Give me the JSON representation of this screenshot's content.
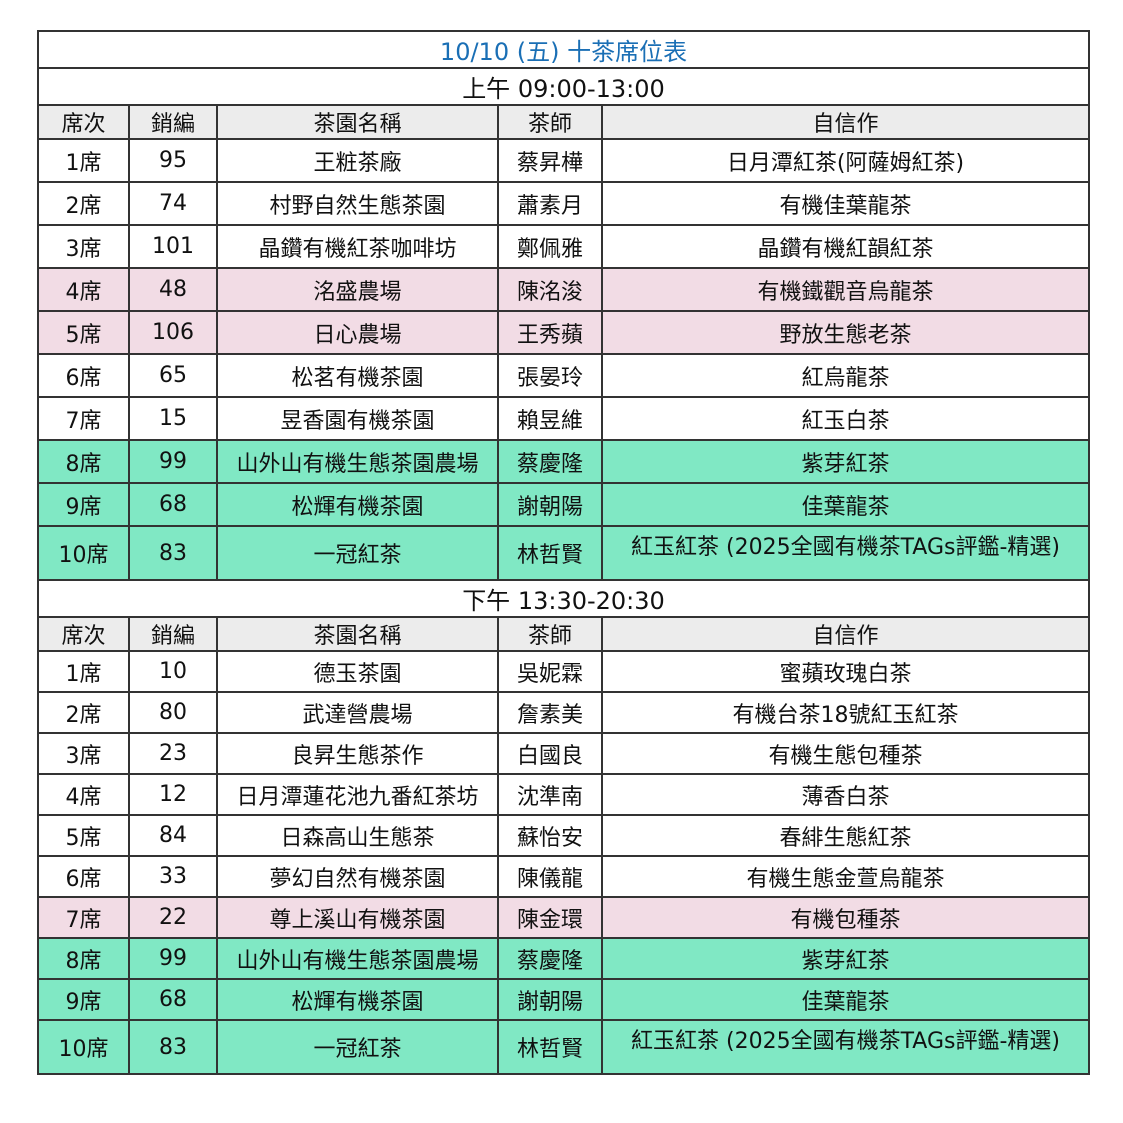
{
  "title": "10/10 (五) 十茶席位表",
  "colors": {
    "title": "#1a6fb5",
    "header_bg": "#ececec",
    "pink": "#f2dce5",
    "green": "#80e8c4"
  },
  "headers": [
    "席次",
    "銷編",
    "茶園名稱",
    "茶師",
    "自信作"
  ],
  "sessions": [
    {
      "label": "上午 09:00-13:00",
      "rows": [
        {
          "seat": "1席",
          "code": "95",
          "garden": "王粧茶廠",
          "master": "蔡昇樺",
          "tea": "日月潭紅茶(阿薩姆紅茶)",
          "highlight": "none"
        },
        {
          "seat": "2席",
          "code": "74",
          "garden": "村野自然生態茶園",
          "master": "蕭素月",
          "tea": "有機佳葉龍茶",
          "highlight": "none"
        },
        {
          "seat": "3席",
          "code": "101",
          "garden": "晶鑽有機紅茶咖啡坊",
          "master": "鄭佩雅",
          "tea": "晶鑽有機紅韻紅茶",
          "highlight": "none"
        },
        {
          "seat": "4席",
          "code": "48",
          "garden": "洺盛農場",
          "master": "陳洺浚",
          "tea": "有機鐵觀音烏龍茶",
          "highlight": "pink"
        },
        {
          "seat": "5席",
          "code": "106",
          "garden": "日心農場",
          "master": "王秀蘋",
          "tea": "野放生態老茶",
          "highlight": "pink"
        },
        {
          "seat": "6席",
          "code": "65",
          "garden": "松茗有機茶園",
          "master": "張晏玲",
          "tea": "紅烏龍茶",
          "highlight": "none"
        },
        {
          "seat": "7席",
          "code": "15",
          "garden": "昱香園有機茶園",
          "master": "賴昱維",
          "tea": "紅玉白茶",
          "highlight": "none"
        },
        {
          "seat": "8席",
          "code": "99",
          "garden": "山外山有機生態茶園農場",
          "master": "蔡慶隆",
          "tea": "紫芽紅茶",
          "highlight": "green"
        },
        {
          "seat": "9席",
          "code": "68",
          "garden": "松輝有機茶園",
          "master": "謝朝陽",
          "tea": "佳葉龍茶",
          "highlight": "green"
        },
        {
          "seat": "10席",
          "code": "83",
          "garden": "一冠紅茶",
          "master": "林哲賢",
          "tea": "紅玉紅茶 (2025全國有機茶TAGs評鑑-精選)",
          "highlight": "green"
        }
      ]
    },
    {
      "label": "下午 13:30-20:30",
      "rows": [
        {
          "seat": "1席",
          "code": "10",
          "garden": "德玉茶園",
          "master": "吳妮霖",
          "tea": "蜜蘋玫瑰白茶",
          "highlight": "none"
        },
        {
          "seat": "2席",
          "code": "80",
          "garden": "武達營農場",
          "master": "詹素美",
          "tea": "有機台茶18號紅玉紅茶",
          "highlight": "none"
        },
        {
          "seat": "3席",
          "code": "23",
          "garden": "良昇生態茶作",
          "master": "白國良",
          "tea": "有機生態包種茶",
          "highlight": "none"
        },
        {
          "seat": "4席",
          "code": "12",
          "garden": "日月潭蓮花池九番紅茶坊",
          "master": "沈準南",
          "tea": "薄香白茶",
          "highlight": "none"
        },
        {
          "seat": "5席",
          "code": "84",
          "garden": "日森高山生態茶",
          "master": "蘇怡安",
          "tea": "春緋生態紅茶",
          "highlight": "none"
        },
        {
          "seat": "6席",
          "code": "33",
          "garden": "夢幻自然有機茶園",
          "master": "陳儀龍",
          "tea": "有機生態金萱烏龍茶",
          "highlight": "none"
        },
        {
          "seat": "7席",
          "code": "22",
          "garden": "尊上溪山有機茶園",
          "master": "陳金環",
          "tea": "有機包種茶",
          "highlight": "pink"
        },
        {
          "seat": "8席",
          "code": "99",
          "garden": "山外山有機生態茶園農場",
          "master": "蔡慶隆",
          "tea": "紫芽紅茶",
          "highlight": "green"
        },
        {
          "seat": "9席",
          "code": "68",
          "garden": "松輝有機茶園",
          "master": "謝朝陽",
          "tea": "佳葉龍茶",
          "highlight": "green"
        },
        {
          "seat": "10席",
          "code": "83",
          "garden": "一冠紅茶",
          "master": "林哲賢",
          "tea": "紅玉紅茶 (2025全國有機茶TAGs評鑑-精選)",
          "highlight": "green"
        }
      ]
    }
  ]
}
